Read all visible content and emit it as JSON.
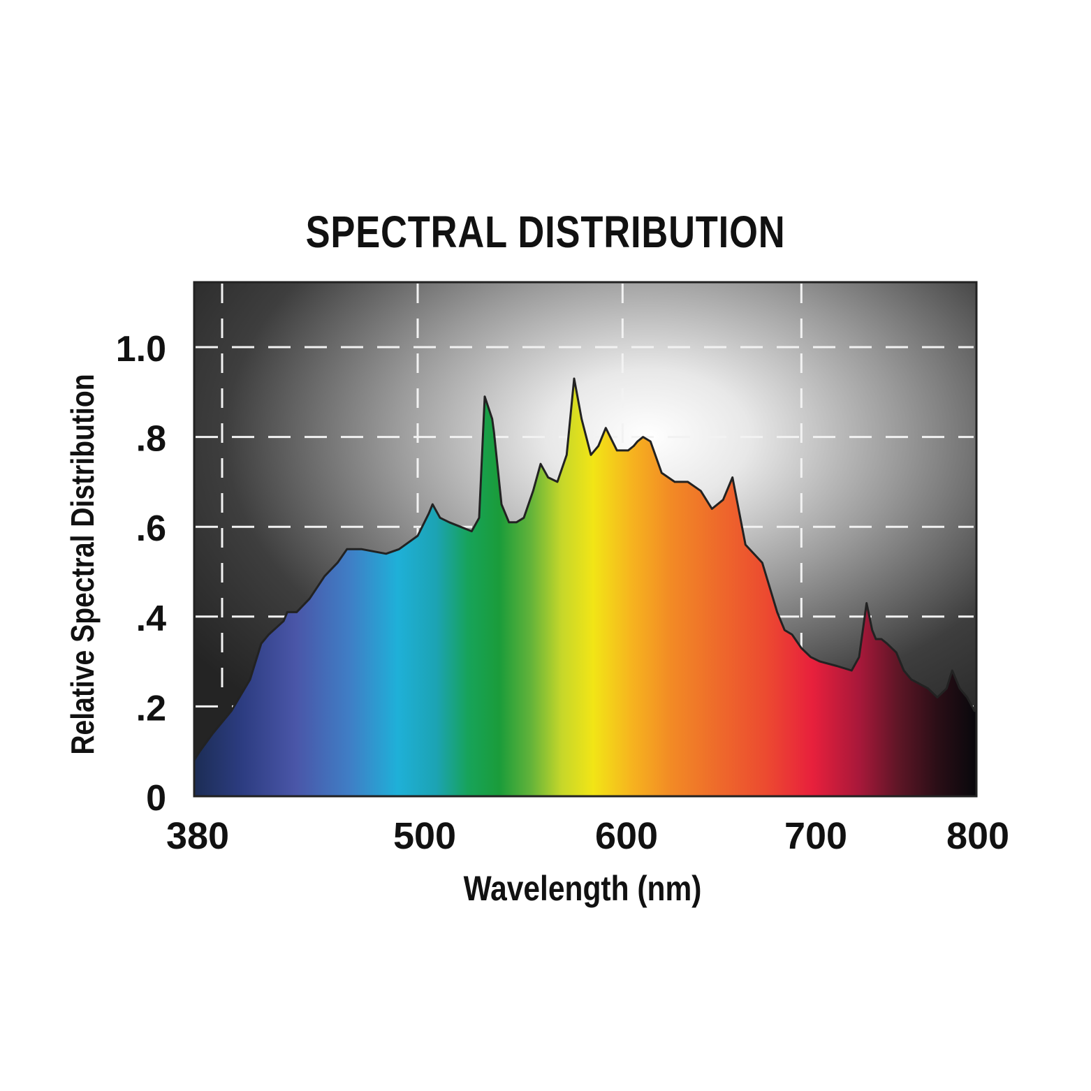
{
  "chart_data": {
    "type": "area",
    "title": "SPECTRAL DISTRIBUTION",
    "xlabel": "Wavelength (nm)",
    "ylabel": "Relative Spectral Distribution",
    "xlim": [
      380,
      800
    ],
    "ylim": [
      0,
      1.15
    ],
    "x_ticks": [
      380,
      500,
      600,
      700,
      800
    ],
    "x_tick_labels": [
      "380",
      "500",
      "600",
      "700",
      "800"
    ],
    "y_ticks": [
      0,
      0.2,
      0.4,
      0.6,
      0.8,
      1.0
    ],
    "y_tick_labels": [
      "0",
      ".2",
      ".4",
      ".6",
      ".8",
      "1.0"
    ],
    "grid": true,
    "fill": "visible spectrum rainbow gradient",
    "x": [
      380,
      383,
      390,
      400,
      410,
      416,
      420,
      428,
      430,
      435,
      442,
      450,
      457,
      462,
      470,
      483,
      490,
      500,
      506,
      508,
      512,
      517,
      523,
      529,
      533,
      536,
      540,
      541,
      545,
      549,
      553,
      557,
      562,
      566,
      570,
      575,
      580,
      584,
      588,
      593,
      597,
      601,
      607,
      613,
      616,
      618,
      621,
      625,
      631,
      638,
      645,
      652,
      658,
      664,
      669,
      676,
      685,
      693,
      697,
      701,
      706,
      711,
      716,
      725,
      733,
      737,
      741,
      744,
      746,
      749,
      752,
      757,
      761,
      765,
      774,
      779,
      784,
      787,
      791,
      795,
      799,
      800
    ],
    "y": [
      0.08,
      0.1,
      0.14,
      0.19,
      0.26,
      0.34,
      0.36,
      0.39,
      0.41,
      0.41,
      0.44,
      0.49,
      0.52,
      0.55,
      0.55,
      0.54,
      0.55,
      0.58,
      0.63,
      0.65,
      0.62,
      0.61,
      0.6,
      0.59,
      0.62,
      0.89,
      0.84,
      0.81,
      0.65,
      0.61,
      0.61,
      0.62,
      0.68,
      0.74,
      0.71,
      0.7,
      0.76,
      0.93,
      0.84,
      0.76,
      0.78,
      0.82,
      0.77,
      0.77,
      0.78,
      0.79,
      0.8,
      0.79,
      0.72,
      0.7,
      0.7,
      0.68,
      0.64,
      0.66,
      0.71,
      0.56,
      0.52,
      0.41,
      0.37,
      0.36,
      0.33,
      0.31,
      0.3,
      0.29,
      0.28,
      0.31,
      0.43,
      0.37,
      0.35,
      0.35,
      0.34,
      0.32,
      0.28,
      0.26,
      0.24,
      0.22,
      0.24,
      0.28,
      0.24,
      0.22,
      0.19,
      0.19
    ]
  }
}
